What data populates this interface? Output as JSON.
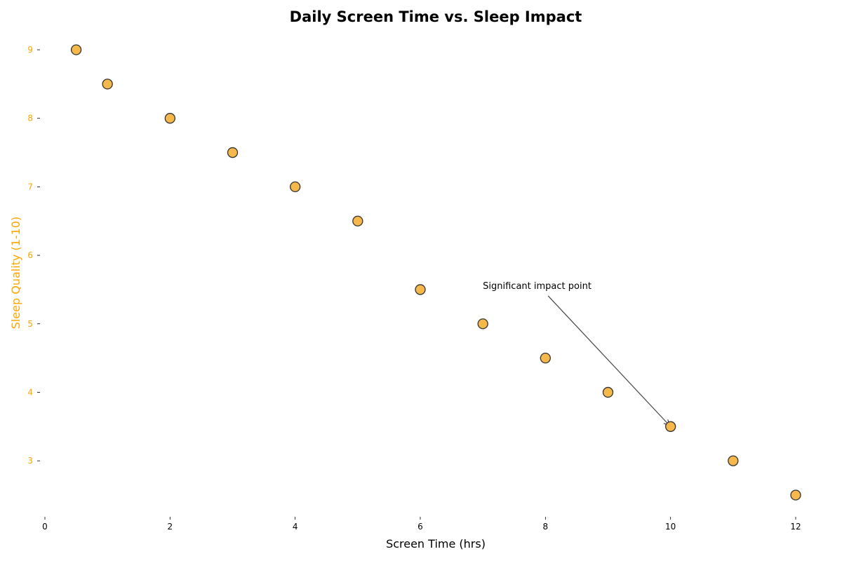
{
  "chart_data": {
    "type": "scatter",
    "title": "Daily Screen Time vs. Sleep Impact",
    "xlabel": "Screen Time (hrs)",
    "ylabel": "Sleep Quality (1-10)",
    "x": [
      0.5,
      1,
      2,
      3,
      4,
      5,
      6,
      7,
      8,
      9,
      10,
      11,
      12
    ],
    "y": [
      9,
      8.5,
      8,
      7.5,
      7,
      6.5,
      5.5,
      5,
      4.5,
      4,
      3.5,
      3,
      2.5
    ],
    "xlim": [
      0,
      12.45
    ],
    "ylim": [
      2.18,
      9.33
    ],
    "xticks": [
      0,
      2,
      4,
      6,
      8,
      10,
      12
    ],
    "yticks": [
      3,
      4,
      5,
      6,
      7,
      8,
      9
    ],
    "grid": false,
    "annotation": {
      "text": "Significant impact point",
      "text_at": [
        7,
        5.5
      ],
      "point_at": [
        10,
        3.5
      ]
    },
    "colors": {
      "marker_fill": "#f6b84a",
      "marker_edge": "#333333",
      "ylabel": "#ffa500",
      "ytick": "#ffa500",
      "arrow": "#444444"
    }
  }
}
